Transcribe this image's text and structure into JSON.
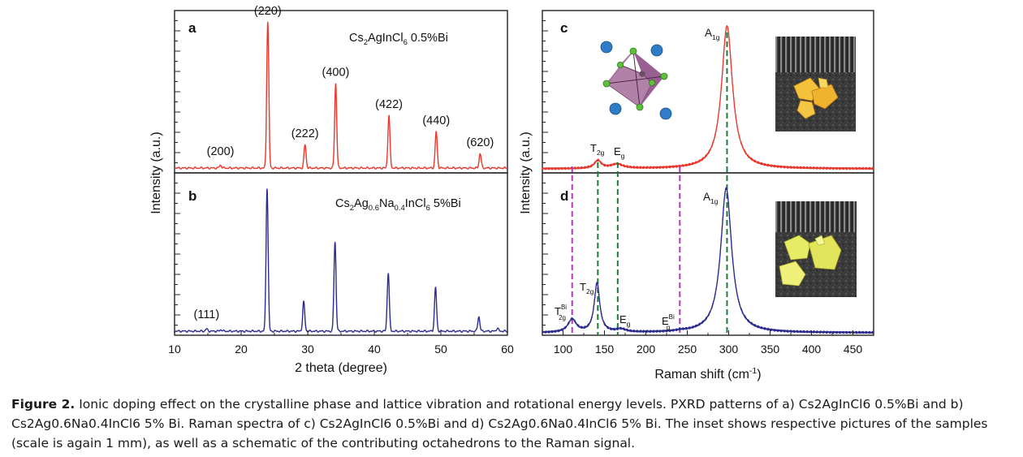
{
  "figure": {
    "caption_label": "Figure 2.",
    "caption_text": "Ionic doping effect on the crystalline phase and lattice vibration and rotational energy levels. PXRD patterns of a) Cs2AgInCl6 0.5%Bi and b) Cs2Ag0.6Na0.4InCl6 5% Bi. Raman spectra of c) Cs2AgInCl6 0.5%Bi and d) Cs2Ag0.6Na0.4InCl6 5% Bi. The inset shows respective pictures of the samples (scale is again 1 mm), as well as a schematic of the contributing octahedrons to the Raman signal."
  },
  "colors": {
    "red": "#e8372c",
    "blue": "#2b2b8f",
    "magenta": "#b03ab8",
    "green": "#1f7a3a"
  },
  "chart_data": [
    {
      "panel": "a",
      "type": "line",
      "sample_label": "Cs2AgInCl6 0.5%Bi",
      "xlim": [
        10,
        60
      ],
      "ylabel": "Intensity (a.u.)",
      "color": "red",
      "peaks": [
        {
          "x": 16.9,
          "h": 0.02,
          "label": "(200)"
        },
        {
          "x": 24.0,
          "h": 1.0,
          "label": "(220)"
        },
        {
          "x": 29.6,
          "h": 0.16,
          "label": "(222)"
        },
        {
          "x": 34.2,
          "h": 0.58,
          "label": "(400)"
        },
        {
          "x": 42.2,
          "h": 0.36,
          "label": "(422)"
        },
        {
          "x": 49.3,
          "h": 0.25,
          "label": "(440)"
        },
        {
          "x": 55.9,
          "h": 0.1,
          "label": "(620)"
        }
      ]
    },
    {
      "panel": "b",
      "type": "line",
      "sample_label": "Cs2Ag0.6Na0.4InCl6 5%Bi",
      "xlim": [
        10,
        60
      ],
      "xlabel": "2 theta (degree)",
      "xticks": [
        10,
        20,
        30,
        40,
        50,
        60
      ],
      "ylabel": "Intensity (a.u.)",
      "color": "blue",
      "peaks": [
        {
          "x": 14.8,
          "h": 0.015,
          "label": "(111)"
        },
        {
          "x": 17.0,
          "h": 0.01
        },
        {
          "x": 23.9,
          "h": 0.98
        },
        {
          "x": 29.4,
          "h": 0.2
        },
        {
          "x": 34.1,
          "h": 0.61
        },
        {
          "x": 42.1,
          "h": 0.4
        },
        {
          "x": 49.2,
          "h": 0.3
        },
        {
          "x": 55.7,
          "h": 0.1
        },
        {
          "x": 58.5,
          "h": 0.02
        }
      ]
    },
    {
      "panel": "c",
      "type": "line",
      "xlim": [
        75,
        475
      ],
      "ylabel": "Intensity (a.u.)",
      "color": "red",
      "peaks": [
        {
          "x": 142,
          "h": 0.055,
          "w": 5,
          "label": "T2g"
        },
        {
          "x": 165,
          "h": 0.03,
          "w": 9,
          "label": "Eg"
        },
        {
          "x": 298,
          "h": 1.0,
          "w": 8,
          "label": "A1g"
        }
      ]
    },
    {
      "panel": "d",
      "type": "line",
      "xlim": [
        75,
        475
      ],
      "xlabel": "Raman shift (cm-1)",
      "xticks": [
        100,
        150,
        200,
        250,
        300,
        350,
        400,
        450
      ],
      "ylabel": "Intensity (a.u.)",
      "color": "blue",
      "peaks": [
        {
          "x": 111,
          "h": 0.09,
          "w": 6,
          "label": "T2g Bi"
        },
        {
          "x": 141,
          "h": 0.34,
          "w": 4,
          "label": "T2g"
        },
        {
          "x": 170,
          "h": 0.02,
          "w": 7,
          "label": "Eg"
        },
        {
          "x": 242,
          "h": 0.005,
          "w": 6,
          "label": "Eg Bi"
        },
        {
          "x": 297,
          "h": 1.0,
          "w": 8,
          "label": "A1g"
        }
      ],
      "dashed_lines": [
        {
          "x": 111,
          "color": "magenta"
        },
        {
          "x": 142,
          "color": "green"
        },
        {
          "x": 166,
          "color": "green"
        },
        {
          "x": 241,
          "color": "magenta"
        },
        {
          "x": 298,
          "color": "green"
        }
      ]
    }
  ]
}
